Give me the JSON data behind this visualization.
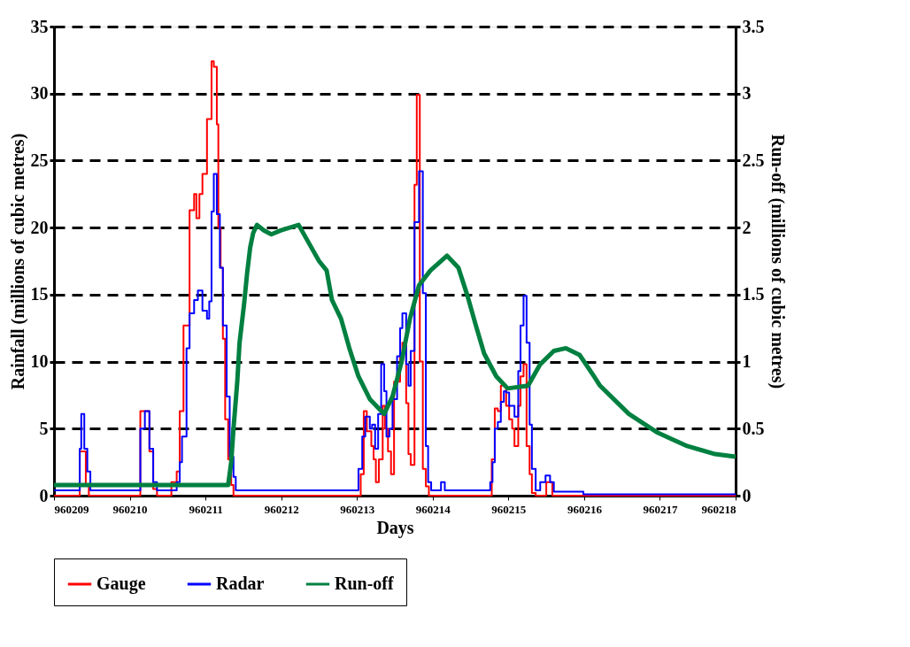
{
  "chart_data": {
    "type": "step",
    "xlabel": "Days",
    "ylabel": "Rainfall (millions of cubic metres)",
    "y2label": "Run-off (millions of cubic metres)",
    "xlim": [
      960209,
      960218
    ],
    "xticks": [
      960209,
      960210,
      960211,
      960212,
      960213,
      960214,
      960215,
      960216,
      960217,
      960218
    ],
    "ylim": [
      0,
      35
    ],
    "yticks": [
      0,
      5,
      10,
      15,
      20,
      25,
      30,
      35
    ],
    "y2lim": [
      0,
      3.5
    ],
    "y2ticks": [
      0,
      0.5,
      1,
      1.5,
      2,
      2.5,
      3,
      3.5
    ],
    "grid": "y",
    "legend": "bottom",
    "series": [
      {
        "name": "Gauge",
        "color": "#ff0000",
        "x": [
          960209,
          960209.3,
          960209.34,
          960209.42,
          960209.46,
          960210.14,
          960210.26,
          960210.31,
          960210.36,
          960210.55,
          960210.62,
          960210.66,
          960210.71,
          960210.79,
          960210.85,
          960210.88,
          960210.92,
          960210.96,
          960211.02,
          960211.08,
          960211.11,
          960211.15,
          960211.17,
          960211.2,
          960211.23,
          960211.26,
          960211.3,
          960211.34,
          960211.37,
          960213.05,
          960213.09,
          960213.13,
          960213.19,
          960213.22,
          960213.25,
          960213.29,
          960213.34,
          960213.37,
          960213.41,
          960213.45,
          960213.49,
          960213.57,
          960213.6,
          960213.65,
          960213.68,
          960213.71,
          960213.76,
          960213.79,
          960213.83,
          960213.87,
          960213.91,
          960213.95,
          960214.78,
          960214.82,
          960214.86,
          960214.9,
          960214.97,
          960215.01,
          960215.05,
          960215.08,
          960215.13,
          960215.16,
          960215.2,
          960215.24,
          960215.28,
          960215.31,
          960215.36,
          960215.5,
          960215.58,
          960218
        ],
        "values": [
          0,
          0,
          3.3,
          0.8,
          0,
          6.3,
          3.3,
          0.5,
          0,
          1,
          1.8,
          6.3,
          12.7,
          21.3,
          22.5,
          20.7,
          22.5,
          24,
          28.1,
          32.4,
          32,
          27.7,
          20,
          17,
          11.7,
          5.7,
          2.7,
          0.8,
          0,
          1.6,
          6.3,
          4.8,
          3.7,
          2.7,
          1,
          2.7,
          6.7,
          5,
          3.3,
          1.6,
          8.5,
          10.4,
          11.4,
          6.9,
          3.1,
          2.3,
          23.2,
          29.9,
          10,
          2,
          0.7,
          0,
          2.7,
          6.5,
          6.3,
          8.2,
          6.7,
          5.7,
          5,
          3.7,
          6.7,
          8.9,
          9.8,
          3.7,
          1.6,
          0.2,
          0,
          1,
          0,
          0
        ]
      },
      {
        "name": "Radar",
        "color": "#0000ff",
        "x": [
          960209,
          960209.3,
          960209.34,
          960209.36,
          960209.4,
          960209.44,
          960209.48,
          960210.1,
          960210.14,
          960210.2,
          960210.26,
          960210.31,
          960210.36,
          960210.62,
          960210.66,
          960210.69,
          960210.75,
          960210.79,
          960210.85,
          960210.9,
          960210.96,
          960211.02,
          960211.05,
          960211.08,
          960211.11,
          960211.15,
          960211.19,
          960211.23,
          960211.28,
          960211.32,
          960211.37,
          960211.4,
          960212.95,
          960213.02,
          960213.07,
          960213.11,
          960213.17,
          960213.2,
          960213.24,
          960213.28,
          960213.32,
          960213.36,
          960213.39,
          960213.43,
          960213.47,
          960213.53,
          960213.57,
          960213.6,
          960213.65,
          960213.68,
          960213.71,
          960213.76,
          960213.82,
          960213.87,
          960213.91,
          960213.94,
          960213.98,
          960214.11,
          960214.16,
          960214.7,
          960214.76,
          960214.79,
          960214.82,
          960214.86,
          960214.9,
          960214.94,
          960214.97,
          960215.01,
          960215.08,
          960215.13,
          960215.16,
          960215.2,
          960215.24,
          960215.28,
          960215.31,
          960215.36,
          960215.42,
          960215.49,
          960215.55,
          960215.6,
          960215.99,
          960218
        ],
        "values": [
          0.4,
          0.4,
          3.5,
          6.1,
          3.5,
          1.8,
          0.4,
          0.4,
          5,
          6.3,
          3.5,
          1,
          0.4,
          1,
          2.5,
          4.4,
          11,
          13.6,
          14.6,
          15.3,
          13.8,
          13.2,
          14.5,
          21.2,
          24,
          21,
          17,
          12.7,
          7.4,
          2.9,
          1.4,
          0.4,
          0.4,
          2,
          4.4,
          5.9,
          5,
          5.3,
          3.5,
          6.1,
          9.8,
          7.8,
          4.4,
          5,
          7.2,
          10.4,
          12.5,
          13.6,
          9.8,
          8.2,
          10.8,
          20.4,
          24.2,
          15.1,
          3.7,
          1,
          0.4,
          1,
          0.4,
          0.4,
          1,
          2.5,
          5,
          5.5,
          7,
          7.8,
          7.7,
          6.7,
          5.9,
          9.3,
          12.7,
          14.9,
          11.4,
          5.3,
          2,
          0.4,
          1,
          1.5,
          1,
          0.3,
          0.1,
          0.1
        ]
      },
      {
        "name": "Run-off",
        "type": "line",
        "axis": "y2",
        "color": "#008040",
        "x": [
          960209,
          960211.3,
          960211.34,
          960211.37,
          960211.42,
          960211.45,
          960211.51,
          960211.55,
          960211.59,
          960211.63,
          960211.68,
          960211.77,
          960211.87,
          960212.0,
          960212.23,
          960212.4,
          960212.5,
          960212.6,
          960212.67,
          960212.79,
          960212.9,
          960213.02,
          960213.17,
          960213.36,
          960213.47,
          960213.59,
          960213.7,
          960213.82,
          960213.97,
          960214.19,
          960214.34,
          960214.46,
          960214.57,
          960214.68,
          960214.84,
          960214.99,
          960215.26,
          960215.42,
          960215.6,
          960215.76,
          960215.94,
          960216.13,
          960216.21,
          960216.59,
          960216.97,
          960217.36,
          960217.73,
          960218
        ],
        "values": [
          0.08,
          0.08,
          0.25,
          0.5,
          0.85,
          1.14,
          1.43,
          1.66,
          1.85,
          1.96,
          2.02,
          1.98,
          1.95,
          1.98,
          2.02,
          1.85,
          1.75,
          1.68,
          1.46,
          1.32,
          1.1,
          0.89,
          0.72,
          0.61,
          0.74,
          1.0,
          1.32,
          1.57,
          1.68,
          1.79,
          1.7,
          1.49,
          1.27,
          1.06,
          0.89,
          0.8,
          0.82,
          0.98,
          1.08,
          1.1,
          1.05,
          0.89,
          0.82,
          0.61,
          0.47,
          0.37,
          0.31,
          0.29
        ]
      }
    ]
  }
}
